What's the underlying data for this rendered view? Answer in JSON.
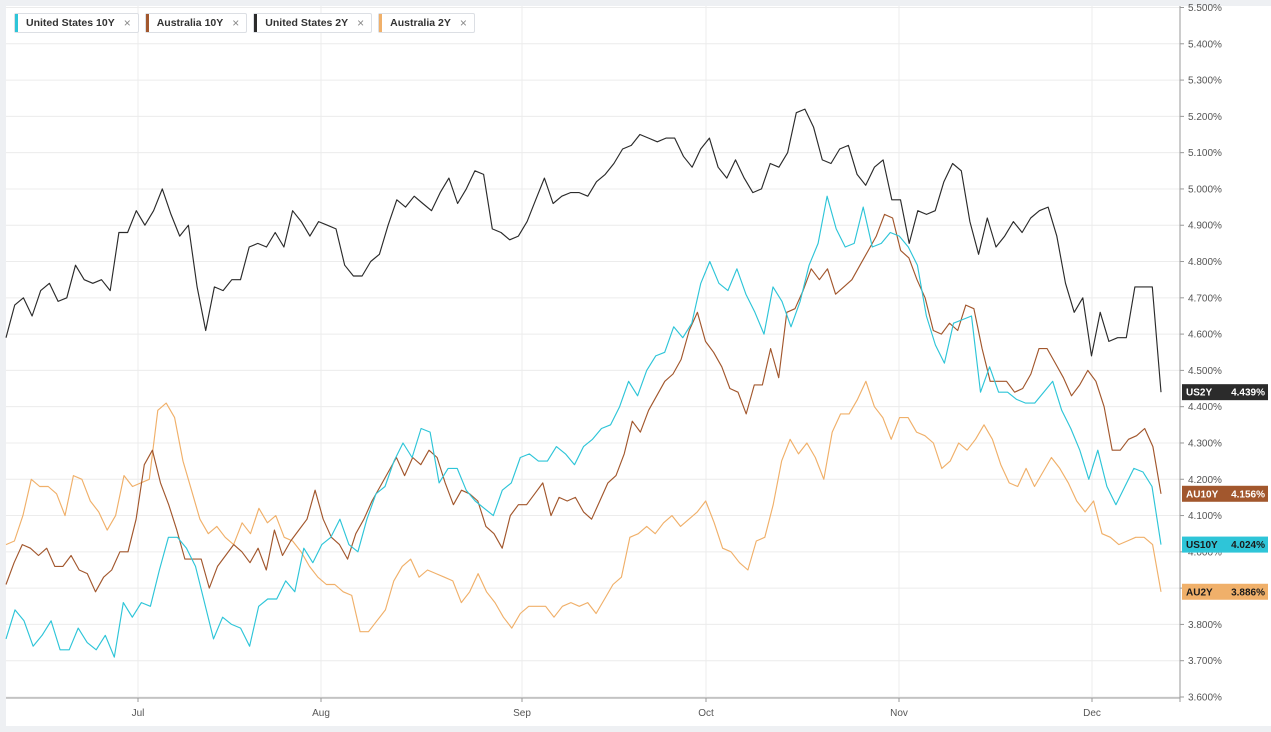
{
  "chart_data": {
    "type": "line",
    "x_labels": [
      "Jul",
      "Aug",
      "Sep",
      "Oct",
      "Nov",
      "Dec"
    ],
    "y_tick_labels": [
      "5.500%",
      "5.400%",
      "5.300%",
      "5.200%",
      "5.100%",
      "5.000%",
      "4.900%",
      "4.800%",
      "4.700%",
      "4.600%",
      "4.500%",
      "4.400%",
      "4.300%",
      "4.200%",
      "4.100%",
      "4.000%",
      "3.900%",
      "3.800%",
      "3.700%",
      "3.600%"
    ],
    "ylim": [
      3.6,
      5.5
    ],
    "grid": true,
    "legend_position": "top-left",
    "y_axis_side": "right",
    "series": [
      {
        "name": "United States 10Y",
        "color": "#2ec5d8",
        "flag_label": "US10Y",
        "last_value_label": "4.024%",
        "values": [
          3.76,
          3.84,
          3.81,
          3.74,
          3.77,
          3.81,
          3.73,
          3.73,
          3.79,
          3.75,
          3.73,
          3.77,
          3.71,
          3.86,
          3.82,
          3.86,
          3.85,
          3.95,
          4.04,
          4.04,
          4.01,
          3.96,
          3.86,
          3.76,
          3.82,
          3.8,
          3.79,
          3.74,
          3.85,
          3.87,
          3.87,
          3.92,
          3.89,
          4.01,
          3.97,
          4.02,
          4.04,
          4.09,
          4.02,
          4.0,
          4.09,
          4.16,
          4.18,
          4.25,
          4.3,
          4.26,
          4.34,
          4.33,
          4.19,
          4.23,
          4.23,
          4.17,
          4.14,
          4.12,
          4.1,
          4.17,
          4.19,
          4.26,
          4.27,
          4.25,
          4.25,
          4.29,
          4.27,
          4.24,
          4.29,
          4.31,
          4.34,
          4.35,
          4.4,
          4.47,
          4.43,
          4.5,
          4.54,
          4.55,
          4.62,
          4.59,
          4.63,
          4.74,
          4.8,
          4.74,
          4.72,
          4.78,
          4.71,
          4.66,
          4.6,
          4.73,
          4.69,
          4.62,
          4.69,
          4.79,
          4.85,
          4.98,
          4.89,
          4.84,
          4.85,
          4.95,
          4.84,
          4.85,
          4.88,
          4.87,
          4.84,
          4.79,
          4.65,
          4.57,
          4.52,
          4.63,
          4.64,
          4.65,
          4.44,
          4.51,
          4.44,
          4.44,
          4.42,
          4.41,
          4.41,
          4.44,
          4.47,
          4.39,
          4.34,
          4.28,
          4.2,
          4.28,
          4.18,
          4.13,
          4.18,
          4.23,
          4.22,
          4.18,
          4.02
        ]
      },
      {
        "name": "Australia 10Y",
        "color": "#a2572d",
        "flag_label": "AU10Y",
        "last_value_label": "4.156%",
        "values": [
          3.91,
          3.97,
          4.02,
          4.01,
          3.99,
          4.01,
          3.96,
          3.96,
          3.99,
          3.95,
          3.94,
          3.89,
          3.93,
          3.95,
          4.0,
          4.0,
          4.09,
          4.24,
          4.28,
          4.19,
          4.13,
          4.06,
          3.98,
          3.98,
          3.98,
          3.9,
          3.96,
          3.99,
          4.02,
          4.0,
          3.97,
          4.01,
          3.95,
          4.06,
          3.99,
          4.03,
          4.06,
          4.09,
          4.17,
          4.09,
          4.04,
          4.02,
          3.98,
          4.05,
          4.09,
          4.14,
          4.18,
          4.22,
          4.26,
          4.21,
          4.26,
          4.24,
          4.28,
          4.26,
          4.19,
          4.13,
          4.17,
          4.16,
          4.14,
          4.07,
          4.05,
          4.01,
          4.1,
          4.13,
          4.13,
          4.16,
          4.19,
          4.1,
          4.15,
          4.14,
          4.15,
          4.11,
          4.09,
          4.14,
          4.19,
          4.21,
          4.27,
          4.36,
          4.33,
          4.39,
          4.43,
          4.47,
          4.49,
          4.53,
          4.61,
          4.66,
          4.58,
          4.55,
          4.51,
          4.45,
          4.44,
          4.38,
          4.46,
          4.46,
          4.56,
          4.48,
          4.66,
          4.67,
          4.72,
          4.78,
          4.75,
          4.78,
          4.71,
          4.73,
          4.75,
          4.79,
          4.83,
          4.87,
          4.93,
          4.92,
          4.83,
          4.81,
          4.75,
          4.7,
          4.61,
          4.6,
          4.63,
          4.61,
          4.68,
          4.67,
          4.56,
          4.47,
          4.47,
          4.47,
          4.44,
          4.45,
          4.49,
          4.56,
          4.56,
          4.52,
          4.48,
          4.43,
          4.46,
          4.5,
          4.47,
          4.4,
          4.28,
          4.28,
          4.31,
          4.32,
          4.34,
          4.29,
          4.16
        ]
      },
      {
        "name": "United States 2Y",
        "color": "#2b2b2b",
        "flag_label": "US2Y",
        "last_value_label": "4.439%",
        "values": [
          4.59,
          4.68,
          4.7,
          4.65,
          4.72,
          4.74,
          4.69,
          4.7,
          4.79,
          4.75,
          4.74,
          4.75,
          4.72,
          4.88,
          4.88,
          4.94,
          4.9,
          4.94,
          5.0,
          4.93,
          4.87,
          4.9,
          4.73,
          4.61,
          4.73,
          4.72,
          4.75,
          4.75,
          4.84,
          4.85,
          4.84,
          4.88,
          4.84,
          4.94,
          4.91,
          4.87,
          4.91,
          4.9,
          4.89,
          4.79,
          4.76,
          4.76,
          4.8,
          4.82,
          4.9,
          4.97,
          4.95,
          4.98,
          4.96,
          4.94,
          4.99,
          5.03,
          4.96,
          5.0,
          5.05,
          5.04,
          4.89,
          4.88,
          4.86,
          4.87,
          4.91,
          4.97,
          5.03,
          4.96,
          4.98,
          4.99,
          4.99,
          4.98,
          5.02,
          5.04,
          5.07,
          5.11,
          5.12,
          5.15,
          5.14,
          5.13,
          5.14,
          5.14,
          5.09,
          5.06,
          5.11,
          5.14,
          5.06,
          5.03,
          5.08,
          5.03,
          4.99,
          5.0,
          5.07,
          5.06,
          5.1,
          5.21,
          5.22,
          5.17,
          5.08,
          5.07,
          5.11,
          5.12,
          5.04,
          5.01,
          5.06,
          5.08,
          4.97,
          4.97,
          4.85,
          4.94,
          4.93,
          4.94,
          5.02,
          5.07,
          5.05,
          4.91,
          4.82,
          4.92,
          4.84,
          4.87,
          4.91,
          4.88,
          4.92,
          4.94,
          4.95,
          4.87,
          4.74,
          4.66,
          4.7,
          4.54,
          4.66,
          4.58,
          4.59,
          4.59,
          4.73,
          4.73,
          4.73,
          4.44
        ]
      },
      {
        "name": "Australia 2Y",
        "color": "#f0b06a",
        "flag_label": "AU2Y",
        "last_value_label": "3.886%",
        "values": [
          4.02,
          4.03,
          4.1,
          4.2,
          4.18,
          4.18,
          4.16,
          4.1,
          4.21,
          4.2,
          4.14,
          4.11,
          4.06,
          4.1,
          4.21,
          4.18,
          4.19,
          4.2,
          4.39,
          4.41,
          4.37,
          4.25,
          4.17,
          4.09,
          4.05,
          4.07,
          4.04,
          4.02,
          4.08,
          4.05,
          4.12,
          4.08,
          4.1,
          4.04,
          4.03,
          4.0,
          3.96,
          3.93,
          3.91,
          3.91,
          3.89,
          3.88,
          3.78,
          3.78,
          3.81,
          3.84,
          3.92,
          3.96,
          3.98,
          3.93,
          3.95,
          3.94,
          3.93,
          3.92,
          3.86,
          3.89,
          3.94,
          3.89,
          3.86,
          3.82,
          3.79,
          3.83,
          3.85,
          3.85,
          3.85,
          3.82,
          3.85,
          3.86,
          3.85,
          3.86,
          3.83,
          3.87,
          3.91,
          3.93,
          4.04,
          4.05,
          4.07,
          4.05,
          4.08,
          4.1,
          4.07,
          4.09,
          4.11,
          4.14,
          4.08,
          4.01,
          4.0,
          3.97,
          3.95,
          4.03,
          4.04,
          4.13,
          4.25,
          4.31,
          4.27,
          4.3,
          4.26,
          4.2,
          4.33,
          4.38,
          4.38,
          4.42,
          4.47,
          4.4,
          4.37,
          4.31,
          4.37,
          4.37,
          4.33,
          4.32,
          4.3,
          4.23,
          4.25,
          4.3,
          4.28,
          4.31,
          4.35,
          4.31,
          4.24,
          4.19,
          4.18,
          4.23,
          4.18,
          4.22,
          4.26,
          4.23,
          4.19,
          4.14,
          4.11,
          4.14,
          4.05,
          4.04,
          4.02,
          4.03,
          4.04,
          4.04,
          4.02,
          3.89
        ]
      }
    ]
  },
  "legend": {
    "items": [
      {
        "label": "United States 10Y",
        "close": "×",
        "color": "#2ec5d8"
      },
      {
        "label": "Australia 10Y",
        "close": "×",
        "color": "#a2572d"
      },
      {
        "label": "United States 2Y",
        "close": "×",
        "color": "#2b2b2b"
      },
      {
        "label": "Australia 2Y",
        "close": "×",
        "color": "#f0b06a"
      }
    ]
  }
}
